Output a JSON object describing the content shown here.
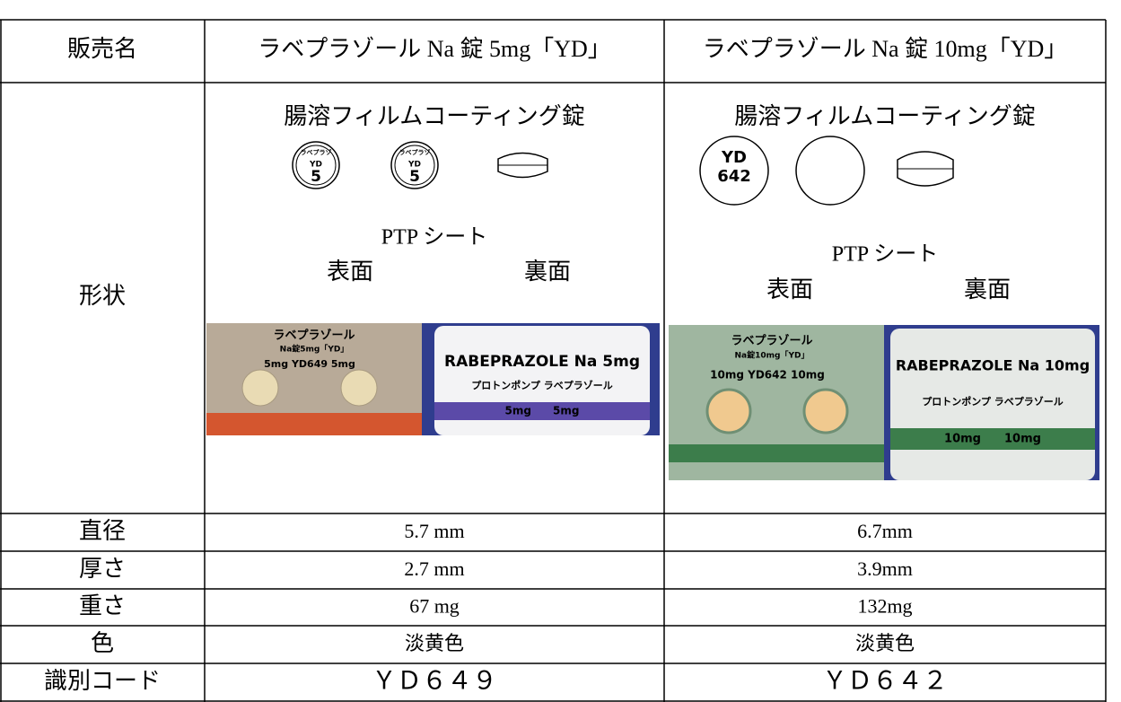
{
  "table": {
    "header": [
      "販売名",
      "ラベプラゾール Na 錠 5mg「YD」",
      "ラベプラゾール Na 錠 10mg「YD」"
    ],
    "shape": {
      "label": "形状",
      "products": [
        {
          "coating": "腸溶フィルムコーティング錠",
          "imprint": [
            "ラベプラゾ",
            "YD",
            "5"
          ],
          "ptp_label": "PTP シート",
          "front": "表面",
          "back": "裏面",
          "sheet_front": [
            "ラベプラゾール",
            "Na錠5mg「YD」",
            "5mg YD649 5mg"
          ],
          "sheet_back": [
            "RABEPRAZOLE Na 5mg",
            "プロトンポンプ ラベプラゾール",
            "5mg　　5mg"
          ]
        },
        {
          "coating": "腸溶フィルムコーティング錠",
          "imprint": [
            "YD",
            "642"
          ],
          "ptp_label": "PTP シート",
          "front": "表面",
          "back": "裏面",
          "sheet_front": [
            "ラベプラゾール",
            "Na錠10mg「YD」",
            "10mg YD642 10mg"
          ],
          "sheet_back": [
            "RABEPRAZOLE Na 10mg",
            "プロトンポンプ ラベプラゾール",
            "10mg　　10mg"
          ]
        }
      ]
    },
    "rows": [
      [
        "直径",
        "5.7 mm",
        "6.7mm"
      ],
      [
        "厚さ",
        "2.7 mm",
        "3.9mm"
      ],
      [
        "重さ",
        "67 mg",
        "132mg"
      ],
      [
        "色",
        "淡黄色",
        "淡黄色"
      ],
      [
        "識別コード",
        "ＹＤ６４９",
        "ＹＤ６４２"
      ]
    ]
  }
}
